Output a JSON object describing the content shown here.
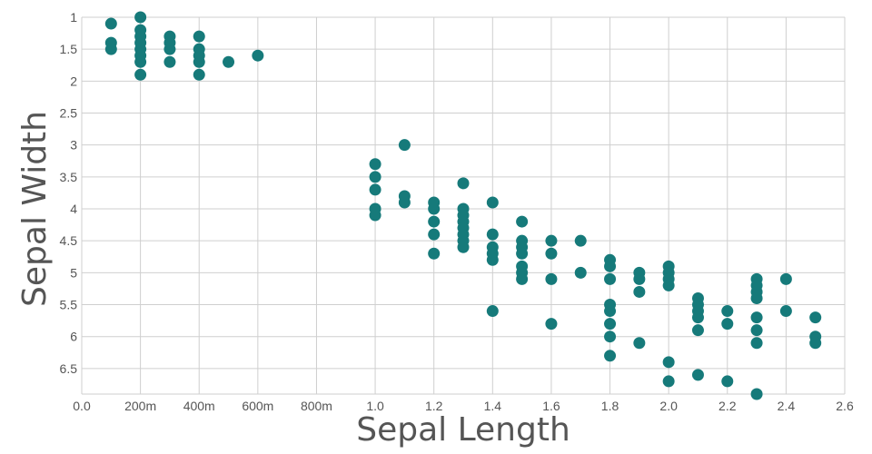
{
  "chart_data": {
    "type": "scatter",
    "xlabel": "Sepal Length",
    "ylabel": "Sepal Width",
    "xlim": [
      0,
      2.6
    ],
    "ylim": [
      1,
      6.9
    ],
    "y_inverted": true,
    "grid": true,
    "marker_color": "#167a7a",
    "x_ticks": [
      {
        "value": 0.0,
        "label": "0.0"
      },
      {
        "value": 0.2,
        "label": "200m"
      },
      {
        "value": 0.4,
        "label": "400m"
      },
      {
        "value": 0.6,
        "label": "600m"
      },
      {
        "value": 0.8,
        "label": "800m"
      },
      {
        "value": 1.0,
        "label": "1.0"
      },
      {
        "value": 1.2,
        "label": "1.2"
      },
      {
        "value": 1.4,
        "label": "1.4"
      },
      {
        "value": 1.6,
        "label": "1.6"
      },
      {
        "value": 1.8,
        "label": "1.8"
      },
      {
        "value": 2.0,
        "label": "2.0"
      },
      {
        "value": 2.2,
        "label": "2.2"
      },
      {
        "value": 2.4,
        "label": "2.4"
      },
      {
        "value": 2.6,
        "label": "2.6"
      }
    ],
    "y_ticks": [
      {
        "value": 1,
        "label": "1"
      },
      {
        "value": 1.5,
        "label": "1.5"
      },
      {
        "value": 2,
        "label": "2"
      },
      {
        "value": 2.5,
        "label": "2.5"
      },
      {
        "value": 3,
        "label": "3"
      },
      {
        "value": 3.5,
        "label": "3.5"
      },
      {
        "value": 4,
        "label": "4"
      },
      {
        "value": 4.5,
        "label": "4.5"
      },
      {
        "value": 5,
        "label": "5"
      },
      {
        "value": 5.5,
        "label": "5.5"
      },
      {
        "value": 6,
        "label": "6"
      },
      {
        "value": 6.5,
        "label": "6.5"
      }
    ],
    "points": [
      [
        0.1,
        1.1
      ],
      [
        0.1,
        1.4
      ],
      [
        0.1,
        1.5
      ],
      [
        0.2,
        1.0
      ],
      [
        0.2,
        1.2
      ],
      [
        0.2,
        1.3
      ],
      [
        0.2,
        1.4
      ],
      [
        0.2,
        1.5
      ],
      [
        0.2,
        1.6
      ],
      [
        0.2,
        1.7
      ],
      [
        0.2,
        1.9
      ],
      [
        0.3,
        1.3
      ],
      [
        0.3,
        1.4
      ],
      [
        0.3,
        1.5
      ],
      [
        0.3,
        1.7
      ],
      [
        0.4,
        1.3
      ],
      [
        0.4,
        1.5
      ],
      [
        0.4,
        1.6
      ],
      [
        0.4,
        1.7
      ],
      [
        0.4,
        1.9
      ],
      [
        0.5,
        1.7
      ],
      [
        0.6,
        1.6
      ],
      [
        1.0,
        3.3
      ],
      [
        1.0,
        3.5
      ],
      [
        1.0,
        3.7
      ],
      [
        1.0,
        4.0
      ],
      [
        1.0,
        4.1
      ],
      [
        1.1,
        3.0
      ],
      [
        1.1,
        3.8
      ],
      [
        1.1,
        3.9
      ],
      [
        1.2,
        3.9
      ],
      [
        1.2,
        4.0
      ],
      [
        1.2,
        4.2
      ],
      [
        1.2,
        4.4
      ],
      [
        1.2,
        4.7
      ],
      [
        1.3,
        3.6
      ],
      [
        1.3,
        4.0
      ],
      [
        1.3,
        4.1
      ],
      [
        1.3,
        4.2
      ],
      [
        1.3,
        4.3
      ],
      [
        1.3,
        4.4
      ],
      [
        1.3,
        4.5
      ],
      [
        1.3,
        4.6
      ],
      [
        1.4,
        3.9
      ],
      [
        1.4,
        4.4
      ],
      [
        1.4,
        4.6
      ],
      [
        1.4,
        4.7
      ],
      [
        1.4,
        4.8
      ],
      [
        1.4,
        5.6
      ],
      [
        1.5,
        4.2
      ],
      [
        1.5,
        4.5
      ],
      [
        1.5,
        4.6
      ],
      [
        1.5,
        4.7
      ],
      [
        1.5,
        4.9
      ],
      [
        1.5,
        5.0
      ],
      [
        1.5,
        5.1
      ],
      [
        1.6,
        4.5
      ],
      [
        1.6,
        4.7
      ],
      [
        1.6,
        5.1
      ],
      [
        1.6,
        5.8
      ],
      [
        1.7,
        4.5
      ],
      [
        1.7,
        5.0
      ],
      [
        1.8,
        4.8
      ],
      [
        1.8,
        4.9
      ],
      [
        1.8,
        5.1
      ],
      [
        1.8,
        5.5
      ],
      [
        1.8,
        5.6
      ],
      [
        1.8,
        5.8
      ],
      [
        1.8,
        6.0
      ],
      [
        1.8,
        6.3
      ],
      [
        1.9,
        5.0
      ],
      [
        1.9,
        5.1
      ],
      [
        1.9,
        5.3
      ],
      [
        1.9,
        6.1
      ],
      [
        2.0,
        4.9
      ],
      [
        2.0,
        5.0
      ],
      [
        2.0,
        5.1
      ],
      [
        2.0,
        5.2
      ],
      [
        2.0,
        6.4
      ],
      [
        2.0,
        6.7
      ],
      [
        2.1,
        5.4
      ],
      [
        2.1,
        5.5
      ],
      [
        2.1,
        5.6
      ],
      [
        2.1,
        5.7
      ],
      [
        2.1,
        5.9
      ],
      [
        2.1,
        6.6
      ],
      [
        2.2,
        5.6
      ],
      [
        2.2,
        5.8
      ],
      [
        2.2,
        6.7
      ],
      [
        2.3,
        5.1
      ],
      [
        2.3,
        5.2
      ],
      [
        2.3,
        5.3
      ],
      [
        2.3,
        5.4
      ],
      [
        2.3,
        5.7
      ],
      [
        2.3,
        5.9
      ],
      [
        2.3,
        6.1
      ],
      [
        2.3,
        6.9
      ],
      [
        2.4,
        5.1
      ],
      [
        2.4,
        5.6
      ],
      [
        2.5,
        5.7
      ],
      [
        2.5,
        6.0
      ],
      [
        2.5,
        6.1
      ]
    ]
  }
}
